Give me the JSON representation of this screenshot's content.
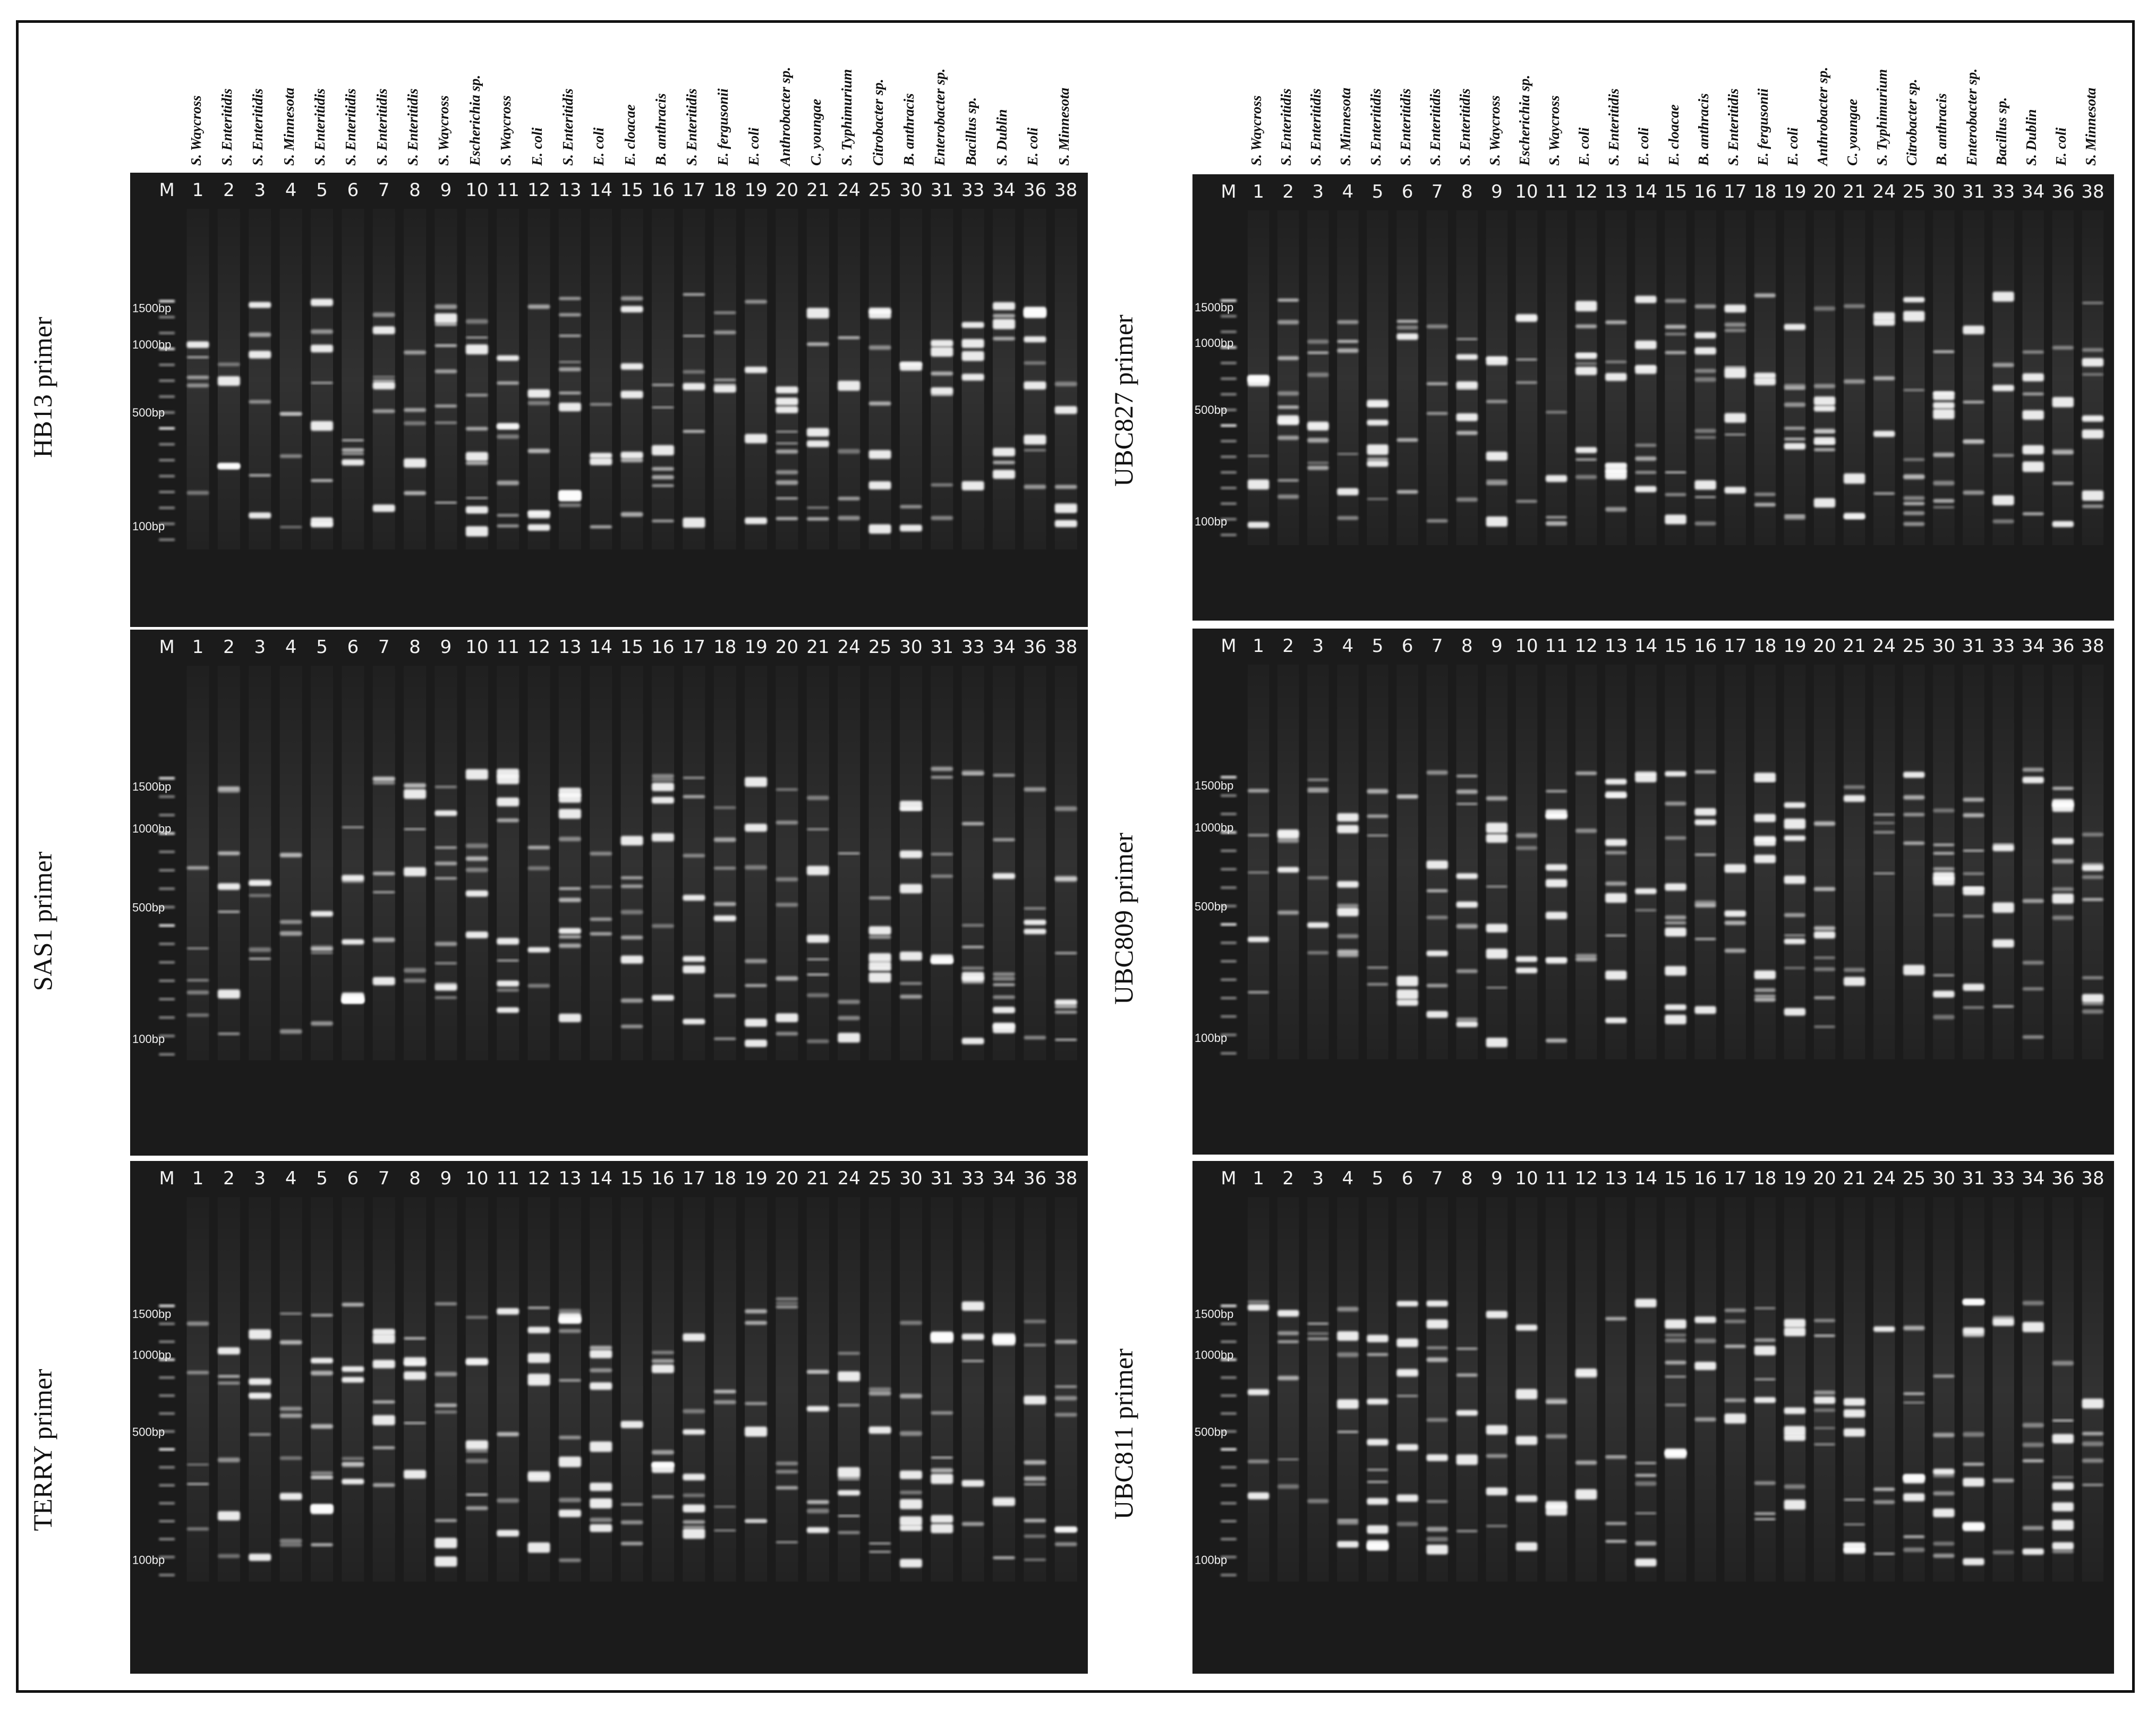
{
  "colors": {
    "gel_bg": "#1b1b1b",
    "band": "#ffffff",
    "text_on_gel": "#f2f2f2",
    "frame": "#111111"
  },
  "marker_label": "M",
  "left_column": {
    "strain_labels": [
      "S. Waycross",
      "S. Enteritidis",
      "S. Enteritidis",
      "S. Minnesota",
      "S. Enteritidis",
      "S. Enteritidis",
      "S. Enteritidis",
      "S. Enteritidis",
      "S. Waycross",
      "Escherichia sp.",
      "S. Waycross",
      "E. coli",
      "S. Enteritidis",
      "E. coli",
      "E. cloacae",
      "B. anthracis",
      "S. Enteritidis",
      "E. fergusonii",
      "E. coli",
      "Anthrobacter sp.",
      "C. youngae",
      "S. Typhimurium",
      "Citrobacter sp.",
      "B. anthracis",
      "Enterobacter sp.",
      "Bacillus sp.",
      "S. Dublin",
      "E. coli",
      "S. Minnesota"
    ],
    "panels": [
      {
        "primer": "HB13 primer",
        "lanes": [
          "1",
          "2",
          "3",
          "4",
          "5",
          "6",
          "7",
          "8",
          "9",
          "10",
          "11",
          "12",
          "13",
          "14",
          "15",
          "16",
          "17",
          "18",
          "19",
          "20",
          "21",
          "24",
          "25",
          "30",
          "31",
          "33",
          "34",
          "36",
          "38"
        ],
        "ladder": [
          "1500bp",
          "1000bp",
          "500bp",
          "100bp"
        ]
      },
      {
        "primer": "SAS1 primer",
        "lanes": [
          "1",
          "2",
          "3",
          "4",
          "5",
          "6",
          "7",
          "8",
          "9",
          "10",
          "11",
          "12",
          "13",
          "14",
          "15",
          "16",
          "17",
          "18",
          "19",
          "20",
          "21",
          "24",
          "25",
          "30",
          "31",
          "33",
          "34",
          "36",
          "38"
        ],
        "ladder": [
          "1500bp",
          "1000bp",
          "500bp",
          "100bp"
        ]
      },
      {
        "primer": "TERRY primer",
        "lanes": [
          "1",
          "2",
          "3",
          "4",
          "5",
          "6",
          "7",
          "8",
          "9",
          "10",
          "11",
          "12",
          "13",
          "14",
          "15",
          "16",
          "17",
          "18",
          "19",
          "20",
          "21",
          "24",
          "25",
          "30",
          "31",
          "33",
          "34",
          "36",
          "38"
        ],
        "ladder": [
          "1500bp",
          "1000bp",
          "500bp",
          "100bp"
        ]
      }
    ]
  },
  "right_column": {
    "strain_labels": [
      "S. Waycross",
      "S. Enteritidis",
      "S. Enteritidis",
      "S. Minnesota",
      "S. Enteritidis",
      "S. Enteritidis",
      "S. Enteritidis",
      "S. Enteritidis",
      "S. Waycross",
      "Escherichia sp.",
      "S. Waycross",
      "E. coli",
      "S. Enteritidis",
      "E. coli",
      "E. cloacae",
      "B. anthracis",
      "S. Enteritidis",
      "E. fergusonii",
      "E. coli",
      "Anthrobacter sp.",
      "C. youngae",
      "S. Typhimurium",
      "Citrobacter sp.",
      "B. anthracis",
      "Enterobacter sp.",
      "Bacillus sp.",
      "S. Dublin",
      "E. coli",
      "S. Minnesota"
    ],
    "panels": [
      {
        "primer": "UBC827 primer",
        "lanes": [
          "1",
          "2",
          "3",
          "4",
          "5",
          "6",
          "7",
          "8",
          "9",
          "10",
          "11",
          "12",
          "13",
          "14",
          "15",
          "16",
          "17",
          "18",
          "19",
          "20",
          "21",
          "24",
          "25",
          "30",
          "31",
          "33",
          "34",
          "36",
          "38"
        ],
        "ladder": [
          "1500bp",
          "1000bp",
          "500bp",
          "100bp"
        ]
      },
      {
        "primer": "UBC809 primer",
        "lanes": [
          "1",
          "2",
          "3",
          "4",
          "5",
          "6",
          "7",
          "8",
          "9",
          "10",
          "11",
          "12",
          "13",
          "14",
          "15",
          "16",
          "17",
          "18",
          "19",
          "20",
          "21",
          "24",
          "25",
          "30",
          "31",
          "33",
          "34",
          "36",
          "38"
        ],
        "ladder": [
          "1500bp",
          "1000bp",
          "500bp",
          "100bp"
        ]
      },
      {
        "primer": "UBC811 primer",
        "lanes": [
          "1",
          "2",
          "3",
          "4",
          "5",
          "6",
          "7",
          "8",
          "9",
          "10",
          "11",
          "12",
          "13",
          "14",
          "15",
          "16",
          "17",
          "18",
          "19",
          "20",
          "21",
          "24",
          "25",
          "30",
          "31",
          "33",
          "34",
          "36",
          "38"
        ],
        "ladder": [
          "1500bp",
          "1000bp",
          "500bp",
          "100bp"
        ]
      }
    ]
  }
}
